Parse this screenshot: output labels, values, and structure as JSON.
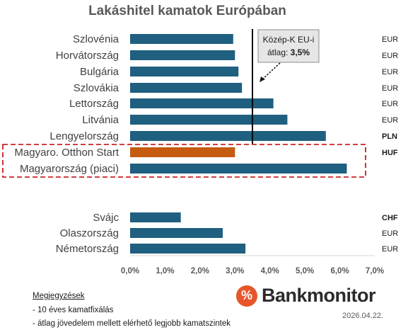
{
  "chart_data": {
    "type": "bar",
    "orientation": "horizontal",
    "title": "Lakáshitel kamatok Európában",
    "categories": [
      "Szlovénia",
      "Horvátország",
      "Bulgária",
      "Szlovákia",
      "Lettország",
      "Litvánia",
      "Lengyelország",
      "Magyaro. Otthon Start",
      "Magyarország (piaci)",
      "Svájc",
      "Olaszország",
      "Németország"
    ],
    "values": [
      2.95,
      3.0,
      3.1,
      3.2,
      4.1,
      4.5,
      5.6,
      3.0,
      6.2,
      1.45,
      2.65,
      3.3
    ],
    "currencies": [
      "EUR",
      "EUR",
      "EUR",
      "EUR",
      "EUR",
      "EUR",
      "PLN",
      "HUF",
      "HUF",
      "CHF",
      "EUR",
      "EUR"
    ],
    "highlighted": [
      "Magyaro. Otthon Start"
    ],
    "xlim": [
      0,
      7
    ],
    "x_ticks": [
      "0,0%",
      "1,0%",
      "2,0%",
      "3,0%",
      "4,0%",
      "5,0%",
      "6,0%",
      "7,0%"
    ],
    "reference_line": {
      "value": 3.5,
      "label_line1": "Közép-K EU-i",
      "label_line2_prefix": "átlag: ",
      "label_line2_value": "3,5%"
    },
    "colors": {
      "bar": "#1f5f7f",
      "highlight": "#c55a11",
      "box": "#c00000"
    },
    "grid": false,
    "legend": "none"
  },
  "notes": {
    "title": "Megjegyzések",
    "items": [
      "- 10 éves kamatfixálás",
      "- átlag jövedelem mellett elérhető legjobb kamatszintek"
    ]
  },
  "brand": {
    "symbol": "%",
    "name": "Bankmonitor"
  },
  "date": "2026.04.22."
}
